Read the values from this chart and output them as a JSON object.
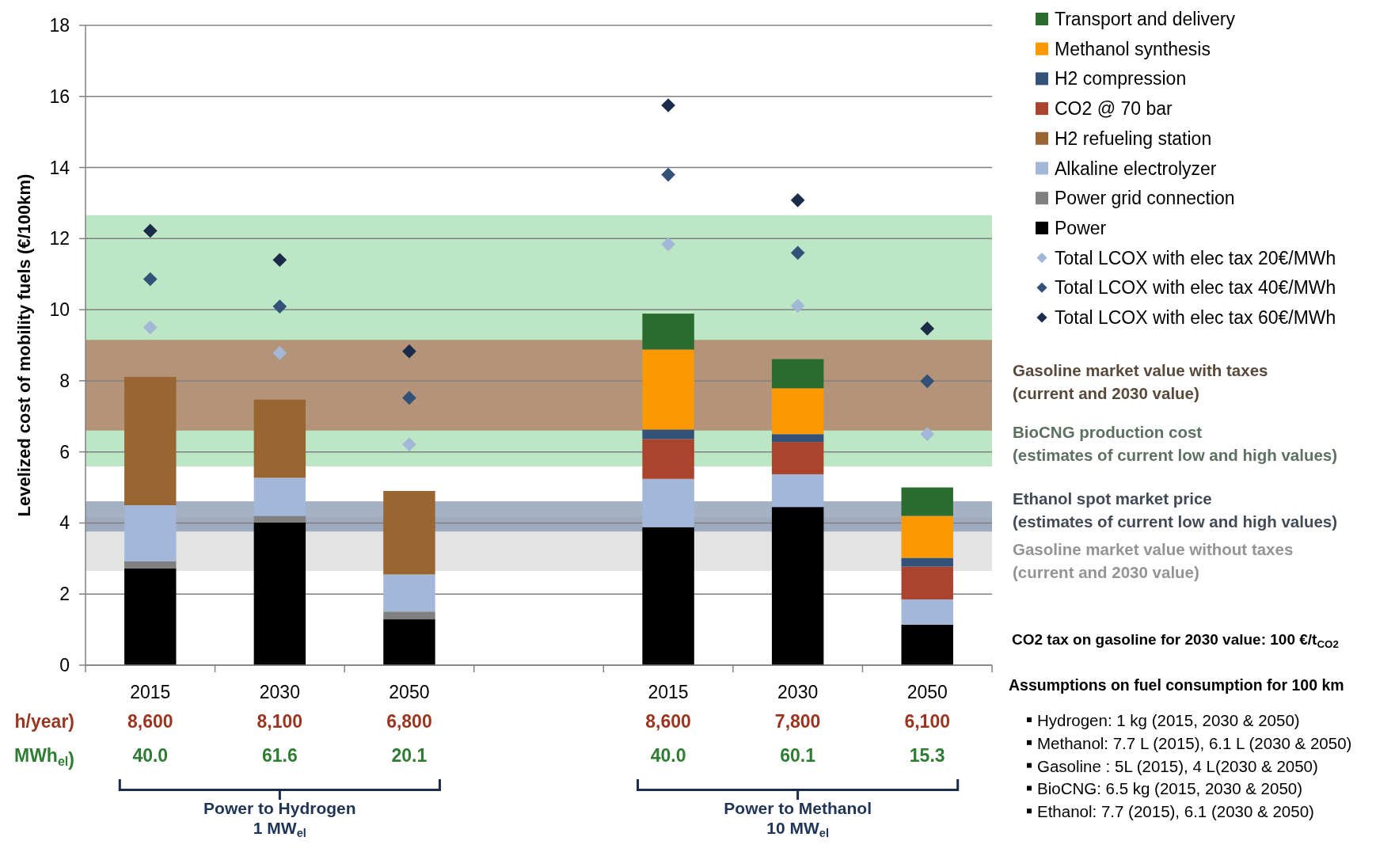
{
  "chart_data": {
    "type": "bar",
    "stacked": true,
    "ylabel": "Levelized cost of mobility fuels (€/100km)",
    "categories": [
      "2015",
      "2030",
      "2050",
      null,
      "2015",
      "2030",
      "2050"
    ],
    "ylim": [
      0,
      18
    ],
    "yticks": [
      0,
      2,
      4,
      6,
      8,
      10,
      12,
      14,
      16,
      18
    ],
    "grid": "y",
    "legend": "top right",
    "series": [
      {
        "name": "Power",
        "color": "#000000",
        "values": [
          2.72,
          4.01,
          1.29,
          null,
          3.88,
          4.45,
          1.14
        ]
      },
      {
        "name": "Power grid connection",
        "color": "#808080",
        "values": [
          0.2,
          0.19,
          0.22,
          null,
          null,
          null,
          null
        ]
      },
      {
        "name": "Alkaline electrolyzer",
        "color": "#a3b7d8",
        "values": [
          1.58,
          1.07,
          1.04,
          null,
          1.36,
          0.92,
          0.71
        ]
      },
      {
        "name": "H2 refueling station",
        "color": "#996533",
        "values": [
          3.61,
          2.2,
          2.35,
          null,
          null,
          null,
          null
        ]
      },
      {
        "name": "CO2 @ 70 bar",
        "color": "#ab442f",
        "values": [
          null,
          null,
          null,
          null,
          1.12,
          0.91,
          0.92
        ]
      },
      {
        "name": "H2 compression",
        "color": "#34517a",
        "values": [
          null,
          null,
          null,
          null,
          0.27,
          0.22,
          0.25
        ]
      },
      {
        "name": "Methanol synthesis",
        "color": "#fb9902",
        "values": [
          null,
          null,
          null,
          null,
          2.25,
          1.29,
          1.18
        ]
      },
      {
        "name": "Transport and delivery",
        "color": "#2a6b30",
        "values": [
          null,
          null,
          null,
          null,
          1.01,
          0.82,
          0.8
        ]
      },
      {
        "name": "Total LCOX with elec tax 20€/MWh",
        "type": "scatter",
        "marker": "diamond",
        "color": "#a3b7d8",
        "values": [
          9.5,
          8.78,
          6.21,
          null,
          11.84,
          10.11,
          6.5
        ]
      },
      {
        "name": "Total LCOX with elec tax 40€/MWh",
        "type": "scatter",
        "marker": "diamond",
        "color": "#34517a",
        "values": [
          10.86,
          10.09,
          7.52,
          null,
          13.8,
          11.6,
          7.99
        ]
      },
      {
        "name": "Total LCOX with elec tax 60€/MWh",
        "type": "scatter",
        "marker": "diamond",
        "color": "#1b2b4a",
        "values": [
          12.22,
          11.4,
          8.83,
          null,
          15.75,
          13.08,
          9.47
        ]
      }
    ],
    "bands": [
      {
        "axis": "y",
        "from": 5.59,
        "to": 12.66,
        "color": "#bde6c5",
        "label": "BioCNG production cost\n(estimates of current low and high values)"
      },
      {
        "axis": "y",
        "from": 6.6,
        "to": 9.15,
        "color": "#b49478",
        "label": "Gasoline market value with taxes\n(current and 2030 value)"
      },
      {
        "axis": "y",
        "from": 2.65,
        "to": 4.16,
        "color": "#e3e3e3",
        "label": "Gasoline market value without taxes\n(current and 2030 value)"
      },
      {
        "axis": "y",
        "from": 3.76,
        "to": 4.61,
        "color": "#8797b0",
        "label": "Ethanol spot market price\n(estimates of current low and high values)"
      }
    ],
    "annotations": [
      "h/year)",
      "MWh$_{el}$)",
      "8,600",
      "8,100",
      "6,800",
      "8,600",
      "7,800",
      "6,100",
      "40.0",
      "61.6",
      "20.1",
      "40.0",
      "60.1",
      "15.3",
      "Power to Hydrogen\n1 MW$_{el}$",
      "Power to Methanol\n10 MW$_{el}$",
      "CO2 tax on gasoline for 2030 value: 100 €/t$_{CO2}$",
      "Assumptions on fuel consumption for 100 km",
      "Hydrogen: 1 kg (2015, 2030 & 2050)",
      "Methanol: 7.7 L (2015), 6.1 L (2030 & 2050)",
      "Gasoline : 5L (2015), 4 L(2030 & 2050)",
      "BioCNG: 6.5 kg (2015, 2030 & 2050)",
      "Ethanol: 7.7 (2015), 6.1 (2030 & 2050)"
    ]
  }
}
